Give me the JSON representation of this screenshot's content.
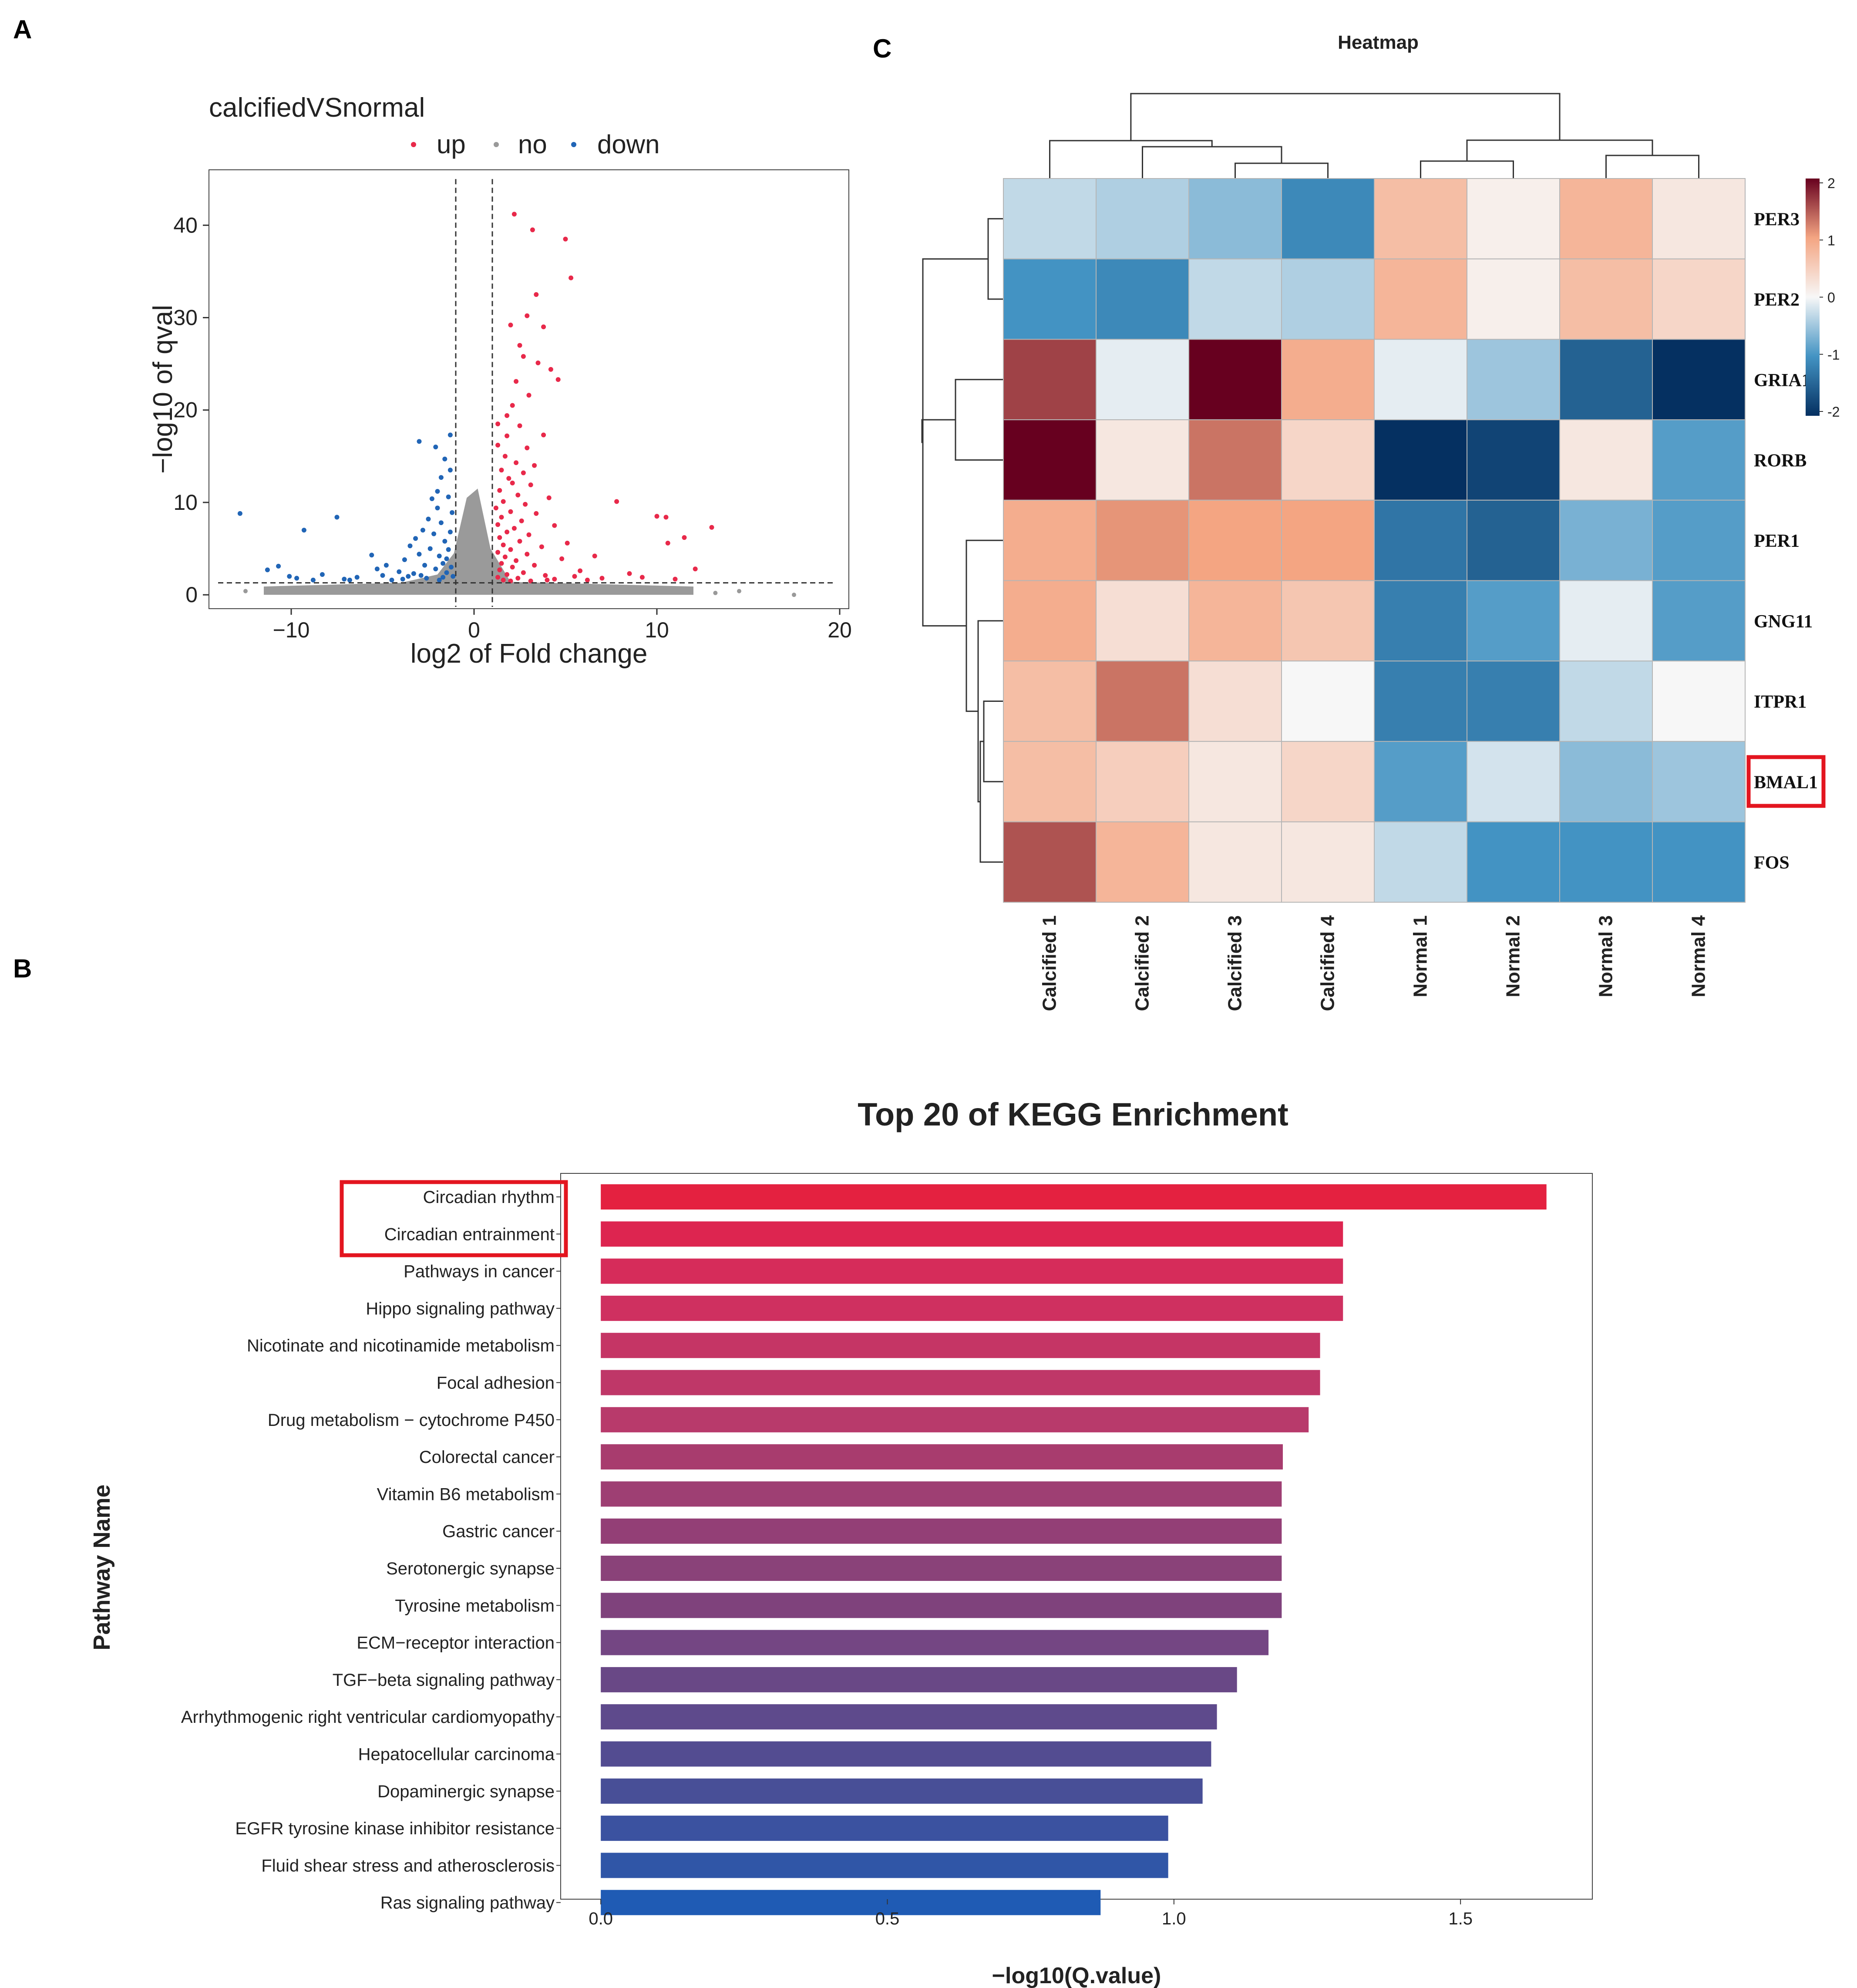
{
  "panels": {
    "a": "A",
    "b": "B",
    "c": "C"
  },
  "volcano": {
    "title": "calcifiedVSnormal",
    "legend": [
      {
        "name": "up",
        "color": "#e8294a"
      },
      {
        "name": "no",
        "color": "#999999"
      },
      {
        "name": "down",
        "color": "#2165b6"
      }
    ],
    "xlabel": "log2 of Fold change",
    "ylabel": "−log10 of qval",
    "xticks": [
      {
        "v": -10,
        "label": "−10"
      },
      {
        "v": 0,
        "label": "0"
      },
      {
        "v": 10,
        "label": "10"
      },
      {
        "v": 20,
        "label": "20"
      }
    ],
    "yticks": [
      {
        "v": 0,
        "label": "0"
      },
      {
        "v": 10,
        "label": "10"
      },
      {
        "v": 20,
        "label": "20"
      },
      {
        "v": 30,
        "label": "30"
      },
      {
        "v": 40,
        "label": "40"
      }
    ]
  },
  "heatmap": {
    "title": "Heatmap",
    "legend_ticks": [
      "2",
      "1",
      "0",
      "-1",
      "-2"
    ]
  },
  "kegg": {
    "title": "Top 20 of KEGG Enrichment",
    "xlabel": "−log10(Q.value)",
    "ylabel": "Pathway Name",
    "xticks": [
      {
        "v": 0,
        "label": "0.0"
      },
      {
        "v": 0.5,
        "label": "0.5"
      },
      {
        "v": 1.0,
        "label": "1.0"
      },
      {
        "v": 1.5,
        "label": "1.5"
      }
    ]
  },
  "chart_data": [
    {
      "type": "scatter",
      "title": "calcifiedVSnormal",
      "xlabel": "log2 of Fold change",
      "ylabel": "−log10 of qval",
      "xlim": [
        -14.5,
        20.5
      ],
      "ylim": [
        -1.5,
        46
      ],
      "thresholds": {
        "x": [
          -1,
          1
        ],
        "y": 1.3
      },
      "series": [
        {
          "name": "up",
          "points": [
            [
              2.2,
              41.2
            ],
            [
              3.2,
              39.5
            ],
            [
              5.0,
              38.5
            ],
            [
              5.3,
              34.3
            ],
            [
              3.4,
              32.5
            ],
            [
              2.9,
              30.2
            ],
            [
              2.0,
              29.2
            ],
            [
              3.8,
              29.0
            ],
            [
              2.5,
              27.0
            ],
            [
              2.7,
              25.8
            ],
            [
              3.5,
              25.1
            ],
            [
              4.2,
              24.4
            ],
            [
              4.6,
              23.3
            ],
            [
              2.3,
              23.1
            ],
            [
              3.0,
              21.6
            ],
            [
              2.1,
              20.5
            ],
            [
              1.8,
              19.4
            ],
            [
              1.3,
              18.5
            ],
            [
              2.5,
              18.3
            ],
            [
              1.8,
              17.2
            ],
            [
              3.8,
              17.3
            ],
            [
              1.3,
              16.2
            ],
            [
              2.9,
              15.9
            ],
            [
              1.7,
              15.0
            ],
            [
              2.3,
              14.3
            ],
            [
              3.3,
              14.0
            ],
            [
              1.5,
              13.5
            ],
            [
              2.7,
              13.2
            ],
            [
              1.9,
              12.6
            ],
            [
              2.1,
              12.1
            ],
            [
              3.1,
              11.9
            ],
            [
              1.4,
              11.3
            ],
            [
              2.4,
              10.8
            ],
            [
              4.1,
              10.5
            ],
            [
              1.6,
              10.1
            ],
            [
              2.8,
              9.8
            ],
            [
              1.2,
              9.4
            ],
            [
              2.0,
              9.0
            ],
            [
              3.4,
              8.8
            ],
            [
              1.5,
              8.4
            ],
            [
              2.6,
              8.0
            ],
            [
              1.3,
              7.6
            ],
            [
              4.4,
              7.5
            ],
            [
              2.2,
              7.2
            ],
            [
              1.8,
              6.8
            ],
            [
              3.0,
              6.5
            ],
            [
              1.4,
              6.2
            ],
            [
              2.5,
              5.8
            ],
            [
              5.1,
              5.6
            ],
            [
              1.6,
              5.4
            ],
            [
              3.7,
              5.2
            ],
            [
              2.0,
              4.9
            ],
            [
              1.3,
              4.6
            ],
            [
              2.9,
              4.4
            ],
            [
              1.7,
              4.1
            ],
            [
              4.8,
              3.9
            ],
            [
              2.3,
              3.7
            ],
            [
              1.5,
              3.4
            ],
            [
              3.3,
              3.2
            ],
            [
              2.1,
              3.0
            ],
            [
              1.4,
              2.7
            ],
            [
              5.8,
              2.6
            ],
            [
              2.7,
              2.4
            ],
            [
              1.8,
              2.2
            ],
            [
              3.9,
              2.1
            ],
            [
              1.3,
              1.9
            ],
            [
              2.4,
              1.8
            ],
            [
              4.4,
              1.7
            ],
            [
              1.6,
              1.6
            ],
            [
              6.2,
              1.6
            ],
            [
              2.0,
              1.5
            ],
            [
              3.1,
              1.5
            ],
            [
              7.8,
              10.1
            ],
            [
              8.5,
              2.3
            ],
            [
              10.0,
              8.5
            ],
            [
              10.5,
              8.4
            ],
            [
              10.6,
              5.6
            ],
            [
              11.5,
              6.2
            ],
            [
              12.1,
              2.8
            ],
            [
              13.0,
              7.3
            ],
            [
              9.2,
              1.9
            ],
            [
              11.0,
              1.7
            ],
            [
              6.6,
              4.2
            ],
            [
              7.0,
              1.8
            ],
            [
              5.5,
              2.0
            ],
            [
              4.0,
              1.6
            ]
          ]
        },
        {
          "name": "down",
          "points": [
            [
              -12.8,
              8.8
            ],
            [
              -9.3,
              7.0
            ],
            [
              -7.5,
              8.4
            ],
            [
              -11.3,
              2.7
            ],
            [
              -10.7,
              3.1
            ],
            [
              -10.1,
              2.0
            ],
            [
              -9.7,
              1.8
            ],
            [
              -8.8,
              1.6
            ],
            [
              -8.3,
              2.2
            ],
            [
              -7.1,
              1.7
            ],
            [
              -6.4,
              1.9
            ],
            [
              -5.6,
              4.3
            ],
            [
              -5.0,
              2.1
            ],
            [
              -4.5,
              1.6
            ],
            [
              -4.1,
              2.5
            ],
            [
              -3.8,
              3.8
            ],
            [
              -3.5,
              5.3
            ],
            [
              -3.2,
              6.1
            ],
            [
              -3.0,
              4.4
            ],
            [
              -2.8,
              7.0
            ],
            [
              -2.7,
              3.2
            ],
            [
              -2.5,
              8.2
            ],
            [
              -2.4,
              5.0
            ],
            [
              -2.2,
              6.6
            ],
            [
              -2.1,
              2.8
            ],
            [
              -2.0,
              9.4
            ],
            [
              -1.9,
              4.2
            ],
            [
              -1.8,
              7.8
            ],
            [
              -1.7,
              3.4
            ],
            [
              -1.6,
              5.8
            ],
            [
              -1.5,
              2.4
            ],
            [
              -1.4,
              4.9
            ],
            [
              -1.3,
              6.8
            ],
            [
              -1.25,
              3.0
            ],
            [
              -1.2,
              8.9
            ],
            [
              -1.15,
              2.0
            ],
            [
              -2.3,
              10.4
            ],
            [
              -2.0,
              11.2
            ],
            [
              -1.4,
              10.6
            ],
            [
              -1.8,
              12.7
            ],
            [
              -1.3,
              13.5
            ],
            [
              -1.6,
              14.7
            ],
            [
              -3.0,
              16.6
            ],
            [
              -2.1,
              16.0
            ],
            [
              -1.3,
              17.3
            ],
            [
              -3.6,
              2.0
            ],
            [
              -4.8,
              3.2
            ],
            [
              -2.6,
              1.8
            ],
            [
              -3.3,
              2.3
            ],
            [
              -1.9,
              1.6
            ],
            [
              -5.3,
              2.8
            ],
            [
              -6.8,
              1.6
            ],
            [
              -3.9,
              1.7
            ],
            [
              -2.9,
              2.1
            ],
            [
              -1.7,
              1.9
            ],
            [
              -1.5,
              3.9
            ]
          ]
        }
      ]
    },
    {
      "type": "heatmap",
      "title": "Heatmap",
      "columns": [
        "Calcified 1",
        "Calcified 2",
        "Calcified 3",
        "Calcified 4",
        "Normal 1",
        "Normal 2",
        "Normal 3",
        "Normal 4"
      ],
      "rows": [
        "PER3",
        "PER2",
        "GRIA1",
        "RORB",
        "PER1",
        "GNG11",
        "ITPR1",
        "BMAL1",
        "FOS"
      ],
      "highlighted_row": "BMAL1",
      "color_range": [
        -2,
        2
      ],
      "values": [
        [
          -0.3,
          -0.4,
          -0.6,
          -1.1,
          0.7,
          0.1,
          0.8,
          0.2
        ],
        [
          -1.0,
          -1.1,
          -0.3,
          -0.4,
          0.8,
          0.1,
          0.7,
          0.4
        ],
        [
          1.6,
          -0.1,
          2.0,
          0.9,
          -0.1,
          -0.5,
          -1.5,
          -2.3
        ],
        [
          2.4,
          0.2,
          1.3,
          0.4,
          -2.1,
          -1.8,
          0.2,
          -0.9
        ],
        [
          0.9,
          1.1,
          1.0,
          1.0,
          -1.3,
          -1.5,
          -0.7,
          -0.9
        ],
        [
          0.9,
          0.3,
          0.8,
          0.6,
          -1.2,
          -0.9,
          -0.1,
          -0.9
        ],
        [
          0.7,
          1.3,
          0.3,
          0.0,
          -1.2,
          -1.2,
          -0.3,
          0.0
        ],
        [
          0.7,
          0.5,
          0.2,
          0.4,
          -0.9,
          -0.2,
          -0.6,
          -0.5
        ],
        [
          1.5,
          0.8,
          0.2,
          0.2,
          -0.3,
          -1.0,
          -1.0,
          -1.0
        ]
      ]
    },
    {
      "type": "bar",
      "orientation": "horizontal",
      "title": "Top 20 of KEGG Enrichment",
      "xlabel": "−log10(Q.value)",
      "ylabel": "Pathway Name",
      "xlim": [
        -0.07,
        1.73
      ],
      "highlighted": [
        "Circadian rhythm",
        "Circadian entrainment"
      ],
      "categories": [
        "Circadian rhythm",
        "Circadian entrainment",
        "Pathways in cancer",
        "Hippo signaling pathway",
        "Nicotinate and nicotinamide metabolism",
        "Focal adhesion",
        "Drug metabolism − cytochrome P450",
        "Colorectal cancer",
        "Vitamin B6 metabolism",
        "Gastric cancer",
        "Serotonergic synapse",
        "Tyrosine metabolism",
        "ECM−receptor interaction",
        "TGF−beta signaling pathway",
        "Arrhythmogenic right ventricular cardiomyopathy",
        "Hepatocellular carcinoma",
        "Dopaminergic synapse",
        "EGFR tyrosine kinase inhibitor resistance",
        "Fluid shear stress and atherosclerosis",
        "Ras signaling pathway"
      ],
      "values": [
        1.65,
        1.295,
        1.295,
        1.295,
        1.255,
        1.255,
        1.235,
        1.19,
        1.188,
        1.188,
        1.188,
        1.188,
        1.165,
        1.11,
        1.075,
        1.065,
        1.05,
        0.99,
        0.99,
        0.872
      ],
      "colors": [
        "#e42140",
        "#dd2550",
        "#d62c5a",
        "#cf3060",
        "#c53565",
        "#bf3768",
        "#b83a6b",
        "#a83c6e",
        "#9e3f73",
        "#933f76",
        "#8a4279",
        "#7f427c",
        "#744683",
        "#694886",
        "#5e4a8c",
        "#534c91",
        "#484f97",
        "#3b52a0",
        "#3056a7",
        "#1f5bb4"
      ]
    }
  ]
}
